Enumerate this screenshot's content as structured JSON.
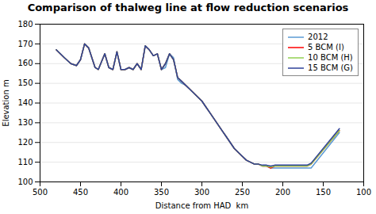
{
  "chart_data": {
    "type": "line",
    "title": "Comparison of thalweg line at flow reduction scenarios",
    "xlabel": "Distance from HAD  km",
    "ylabel": "Elevation m",
    "xlim": [
      500,
      100
    ],
    "ylim": [
      100,
      180
    ],
    "xticks": [
      500,
      450,
      400,
      350,
      300,
      250,
      200,
      150,
      100
    ],
    "yticks": [
      100,
      110,
      120,
      130,
      140,
      150,
      160,
      170,
      180
    ],
    "grid": "y",
    "legend": "upper right",
    "x": [
      480,
      470,
      462,
      455,
      450,
      445,
      440,
      432,
      428,
      420,
      415,
      410,
      405,
      400,
      395,
      390,
      385,
      380,
      375,
      370,
      365,
      360,
      355,
      350,
      345,
      340,
      335,
      330,
      325,
      320,
      315,
      310,
      305,
      300,
      295,
      290,
      285,
      280,
      275,
      270,
      265,
      260,
      255,
      250,
      245,
      240,
      235,
      230,
      225,
      220,
      215,
      210,
      205,
      200,
      195,
      190,
      185,
      180,
      175,
      170,
      165,
      130
    ],
    "series": [
      {
        "name": "2012",
        "color": "#5b9bd5",
        "values": [
          167,
          163,
          160,
          159,
          162,
          170,
          168,
          158,
          157,
          165,
          158,
          157,
          166,
          157,
          157,
          158,
          157,
          160,
          157,
          169,
          167,
          164,
          165,
          157,
          158,
          165,
          163,
          152,
          150,
          149,
          147,
          145,
          143,
          141,
          138,
          135,
          132,
          129,
          126,
          123,
          120,
          117,
          115,
          113,
          111,
          110,
          109,
          109,
          108,
          108,
          107,
          107,
          107,
          107,
          107,
          107,
          107,
          107,
          107,
          107,
          107,
          125
        ]
      },
      {
        "name": "5 BCM (I)",
        "color": "#ff0000",
        "values": [
          167,
          163,
          160,
          159,
          162,
          170,
          168,
          158,
          157,
          165,
          158,
          157,
          166,
          157,
          157,
          158,
          157,
          160,
          157,
          169,
          167,
          164,
          165,
          157,
          160,
          165,
          162,
          153,
          151,
          149,
          147,
          145,
          143,
          141,
          138,
          135,
          132,
          129,
          126,
          123,
          120,
          117,
          115,
          113,
          111,
          110,
          109,
          109,
          108,
          108,
          107,
          108,
          108,
          108,
          108,
          108,
          108,
          108,
          108,
          108,
          109,
          126
        ]
      },
      {
        "name": "10 BCM (H)",
        "color": "#92d050",
        "values": [
          167,
          163,
          160,
          159,
          162,
          170,
          168,
          158,
          157,
          165,
          158,
          157,
          166,
          157,
          157,
          158,
          157,
          160,
          157,
          169,
          167,
          164,
          165,
          157,
          160,
          165,
          162,
          153,
          151,
          149,
          147,
          145,
          143,
          141,
          138,
          135,
          132,
          129,
          126,
          123,
          120,
          117,
          115,
          113,
          111,
          110,
          109,
          109,
          108,
          108,
          107.5,
          108,
          108,
          108,
          108,
          108,
          108,
          108,
          108,
          108,
          109,
          126
        ]
      },
      {
        "name": "15 BCM (G)",
        "color": "#2e4099",
        "values": [
          167,
          163,
          160,
          159,
          162,
          170,
          168,
          158,
          157,
          165,
          158,
          157,
          166,
          157,
          157,
          158,
          157,
          160,
          157,
          169,
          167,
          164,
          165,
          157,
          160,
          165,
          162,
          153,
          151,
          149,
          147,
          145,
          143,
          141,
          138,
          135,
          132,
          129,
          126,
          123,
          120,
          117,
          115,
          113,
          111,
          110,
          109,
          109,
          108.5,
          108.5,
          108,
          108.5,
          108.5,
          108.5,
          108.5,
          108.5,
          108.5,
          108.5,
          108.5,
          108.5,
          109.5,
          127
        ]
      }
    ]
  }
}
